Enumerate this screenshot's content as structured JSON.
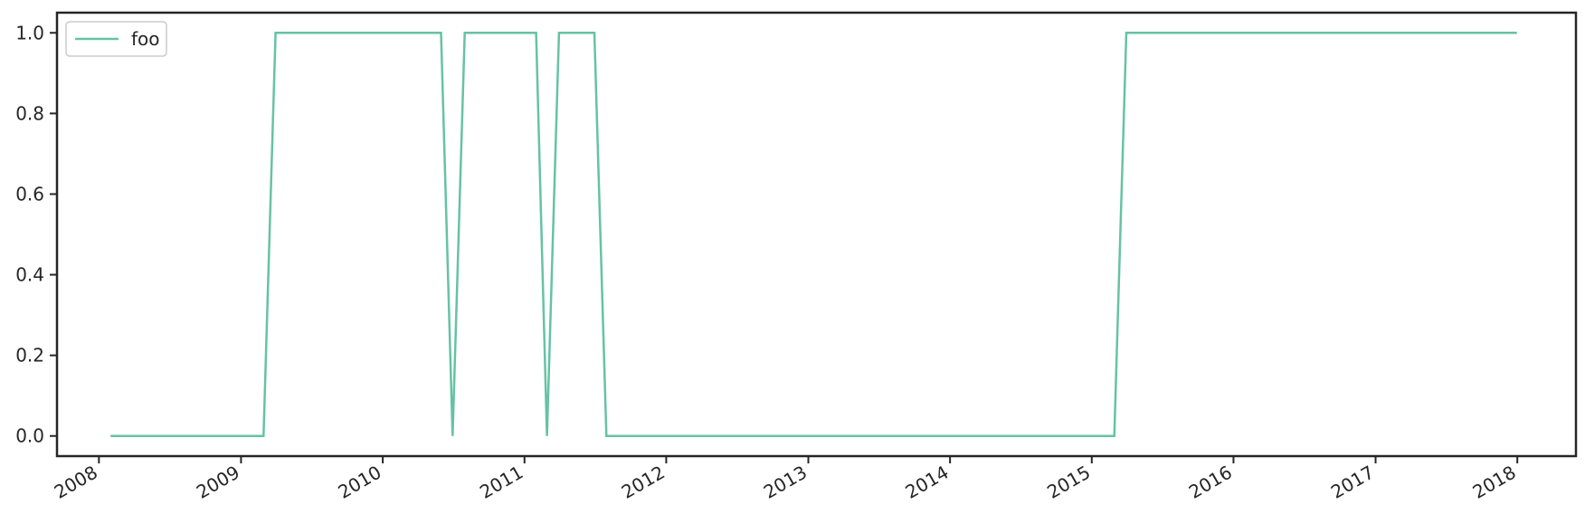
{
  "chart_data": {
    "type": "line",
    "xlabel": "",
    "ylabel": "",
    "x_axis_type": "date",
    "xlim": [
      "2007-09-15",
      "2018-06-01"
    ],
    "ylim": [
      -0.05,
      1.05
    ],
    "x_ticks": [
      "2008-01-01",
      "2009-01-01",
      "2010-01-01",
      "2011-01-01",
      "2012-01-01",
      "2013-01-01",
      "2014-01-01",
      "2015-01-01",
      "2016-01-01",
      "2017-01-01",
      "2018-01-01"
    ],
    "x_tick_labels": [
      "2008",
      "2009",
      "2010",
      "2011",
      "2012",
      "2013",
      "2014",
      "2015",
      "2016",
      "2017",
      "2018"
    ],
    "y_ticks": [
      0.0,
      0.2,
      0.4,
      0.6,
      0.8,
      1.0
    ],
    "y_tick_labels": [
      "0.0",
      "0.2",
      "0.4",
      "0.6",
      "0.8",
      "1.0"
    ],
    "grid": false,
    "legend_position": "top-left",
    "series": [
      {
        "name": "foo",
        "color": "#66c2a5",
        "points": [
          {
            "x": "2008-01-31",
            "y": 0
          },
          {
            "x": "2009-02-28",
            "y": 0
          },
          {
            "x": "2009-03-31",
            "y": 1
          },
          {
            "x": "2010-05-31",
            "y": 1
          },
          {
            "x": "2010-06-30",
            "y": 0
          },
          {
            "x": "2010-07-31",
            "y": 1
          },
          {
            "x": "2011-01-31",
            "y": 1
          },
          {
            "x": "2011-02-28",
            "y": 0
          },
          {
            "x": "2011-03-31",
            "y": 1
          },
          {
            "x": "2011-06-30",
            "y": 1
          },
          {
            "x": "2011-07-31",
            "y": 0
          },
          {
            "x": "2015-02-28",
            "y": 0
          },
          {
            "x": "2015-03-31",
            "y": 1
          },
          {
            "x": "2017-12-31",
            "y": 1
          }
        ]
      }
    ]
  }
}
